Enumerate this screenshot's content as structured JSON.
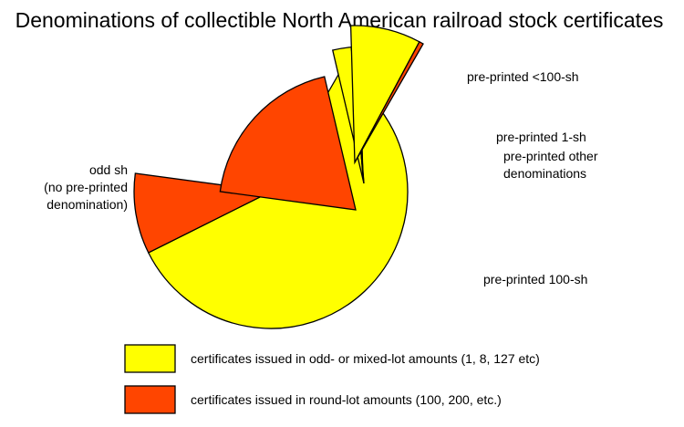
{
  "chart_data": {
    "type": "pie",
    "title": "Denominations of collectible North American railroad stock certificates",
    "colors": {
      "odd": "#ffff00",
      "round": "#ff4500",
      "outline": "#000000"
    },
    "slices": [
      {
        "name": "odd sh (no pre-printed denomination)",
        "label_lines": [
          "odd sh",
          "(no pre-printed",
          "denomination)"
        ],
        "exploded": false,
        "values": {
          "odd": 59.3,
          "round": 9.5
        }
      },
      {
        "name": "pre-printed 100-sh",
        "label_lines": [
          "pre-printed 100-sh"
        ],
        "exploded": true,
        "values": {
          "odd": 0.0,
          "round": 19.2
        }
      },
      {
        "name": "pre-printed other denominations",
        "label_lines": [
          "pre-printed other",
          "denominations"
        ],
        "exploded": true,
        "values": {
          "odd": 2.2,
          "round": 0.3
        }
      },
      {
        "name": "pre-printed 1-sh",
        "label_lines": [
          "pre-printed 1-sh"
        ],
        "exploded": true,
        "values": {
          "odd": 0.6,
          "round": 0.1
        }
      },
      {
        "name": "pre-printed <100-sh",
        "label_lines": [
          "pre-printed <100-sh"
        ],
        "exploded": true,
        "values": {
          "odd": 8.3,
          "round": 0.5
        }
      }
    ],
    "legend": [
      {
        "key": "odd",
        "text": "certificates issued in odd- or mixed-lot amounts (1, 8, 127 etc)"
      },
      {
        "key": "round",
        "text": "certificates issued in round-lot amounts (100, 200, etc.)"
      }
    ]
  }
}
